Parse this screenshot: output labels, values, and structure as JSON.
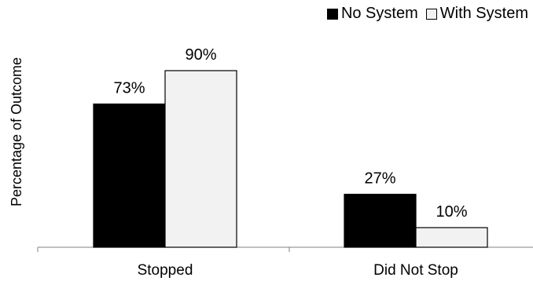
{
  "chart_data": {
    "type": "bar",
    "categories": [
      "Stopped",
      "Did Not Stop"
    ],
    "series": [
      {
        "name": "No System",
        "values": [
          73,
          27
        ],
        "labels": [
          "73%",
          "27%"
        ],
        "color": "#000000"
      },
      {
        "name": "With System",
        "values": [
          90,
          10
        ],
        "labels": [
          "90%",
          "10%"
        ],
        "color": "#f2f2f2"
      }
    ],
    "title": "",
    "xlabel": "",
    "ylabel": "Percentage of Outcome",
    "ylim": [
      0,
      100
    ],
    "grid": false,
    "legend_position": "top-right"
  }
}
